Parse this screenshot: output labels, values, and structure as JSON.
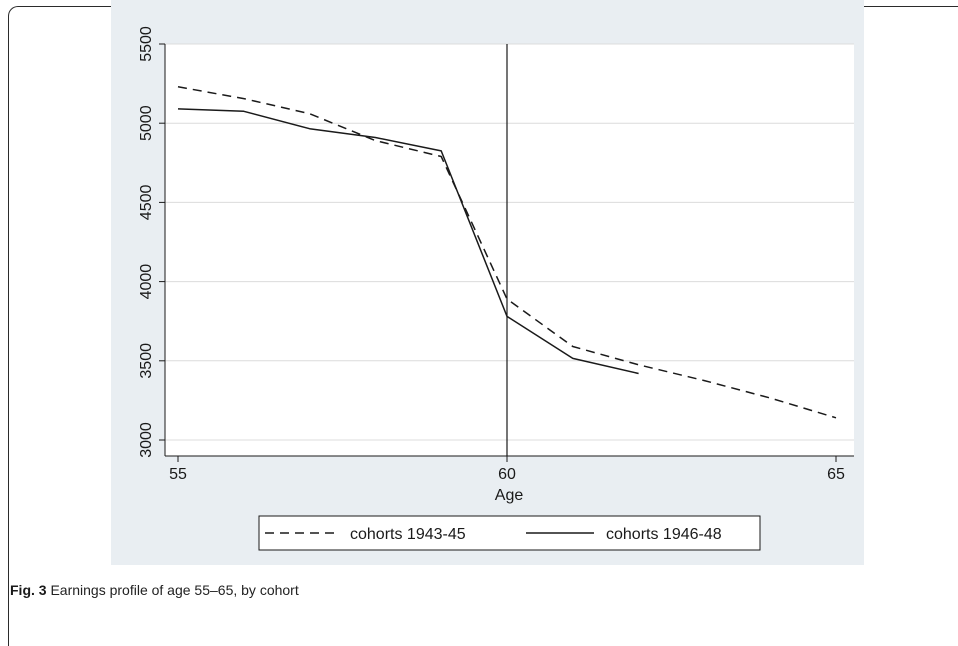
{
  "caption": {
    "label": "Fig. 3",
    "text": "Earnings profile of age 55–65, by cohort"
  },
  "chart_data": {
    "type": "line",
    "title": "",
    "xlabel": "Age",
    "ylabel": "",
    "xlim": [
      55,
      65
    ],
    "ylim": [
      3000,
      5500
    ],
    "xticks": [
      55,
      60,
      65
    ],
    "yticks": [
      3000,
      3500,
      4000,
      4500,
      5000,
      5500
    ],
    "grid": "horizontal",
    "vline": 60,
    "legend_position": "bottom",
    "series": [
      {
        "name": "cohorts 1943-45",
        "style": "dashed",
        "x": [
          55,
          56,
          57,
          58,
          59,
          60,
          61,
          62,
          63,
          64,
          65
        ],
        "y": [
          5230,
          5155,
          5060,
          4890,
          4790,
          3890,
          3590,
          3475,
          3375,
          3265,
          3140
        ]
      },
      {
        "name": "cohorts 1946-48",
        "style": "solid",
        "x": [
          55,
          56,
          57,
          58,
          59,
          60,
          61,
          62
        ],
        "y": [
          5090,
          5075,
          4965,
          4910,
          4825,
          3780,
          3515,
          3420
        ]
      }
    ]
  },
  "colors": {
    "plot_background": "#ffffff",
    "outer_background": "#e9eef2",
    "line": "#1a1a1a",
    "grid": "#dcdcdc"
  }
}
